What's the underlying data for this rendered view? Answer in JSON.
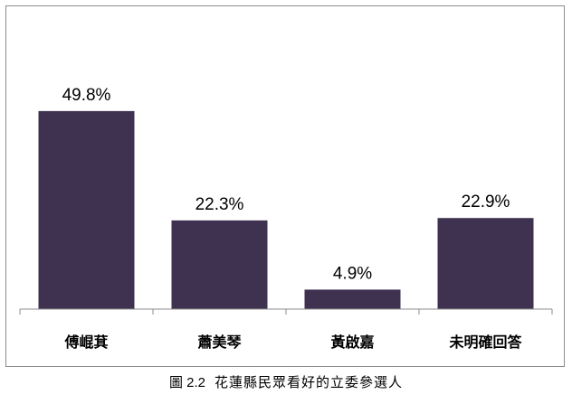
{
  "chart_data": {
    "type": "bar",
    "categories": [
      "傅崐萁",
      "蕭美琴",
      "黃啟嘉",
      "未明確回答"
    ],
    "values": [
      49.8,
      22.3,
      4.9,
      22.9
    ],
    "data_labels": [
      "49.8%",
      "22.3%",
      "4.9%",
      "22.9%"
    ],
    "title": "",
    "xlabel": "",
    "ylabel": "",
    "ylim": [
      0,
      55
    ],
    "grid": false,
    "legend": "none",
    "bar_color": "#3f3150"
  },
  "caption": {
    "figure_number": "圖 2.2",
    "text": "花蓮縣民眾看好的立委參選人"
  }
}
